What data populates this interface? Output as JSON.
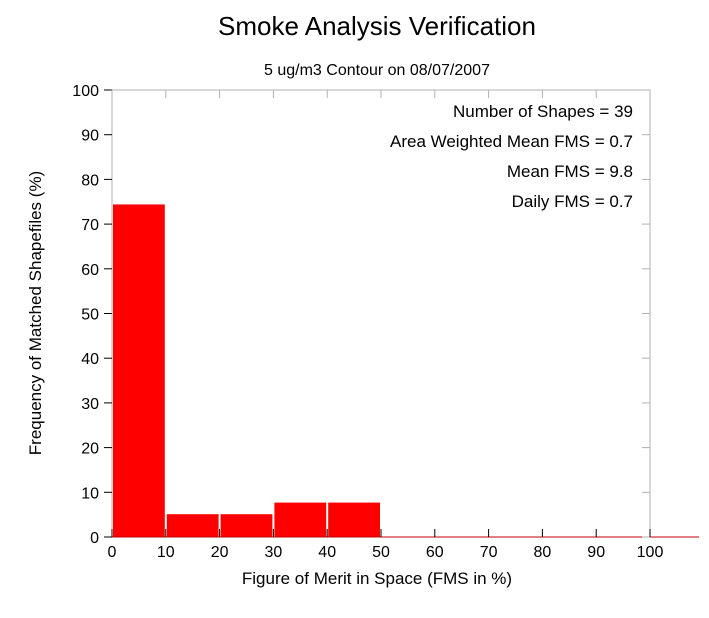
{
  "chart_data": {
    "type": "bar",
    "title": "Smoke Analysis Verification",
    "subtitle": "5 ug/m3 Contour on 08/07/2007",
    "xlabel": "Figure of Merit in Space (FMS in %)",
    "ylabel": "Frequency of Matched Shapefiles (%)",
    "xlim": [
      0,
      100
    ],
    "ylim": [
      0,
      100
    ],
    "x_ticks": [
      "0",
      "10",
      "20",
      "30",
      "40",
      "50",
      "60",
      "70",
      "80",
      "90",
      "100"
    ],
    "y_ticks": [
      "0",
      "10",
      "20",
      "30",
      "40",
      "50",
      "60",
      "70",
      "80",
      "90",
      "100"
    ],
    "bins": [
      [
        0,
        10
      ],
      [
        10,
        20
      ],
      [
        20,
        30
      ],
      [
        30,
        40
      ],
      [
        40,
        50
      ],
      [
        50,
        60
      ],
      [
        60,
        70
      ],
      [
        70,
        80
      ],
      [
        80,
        90
      ],
      [
        90,
        100
      ]
    ],
    "values": [
      74.4,
      5.1,
      5.1,
      7.7,
      7.7,
      0,
      0,
      0,
      0,
      0
    ],
    "bar_color": "#ff0000",
    "grid": false,
    "annotations": [
      "Number of Shapes = 39",
      "Area Weighted Mean FMS = 0.7",
      "Mean FMS = 9.8",
      "Daily FMS = 0.7"
    ]
  }
}
